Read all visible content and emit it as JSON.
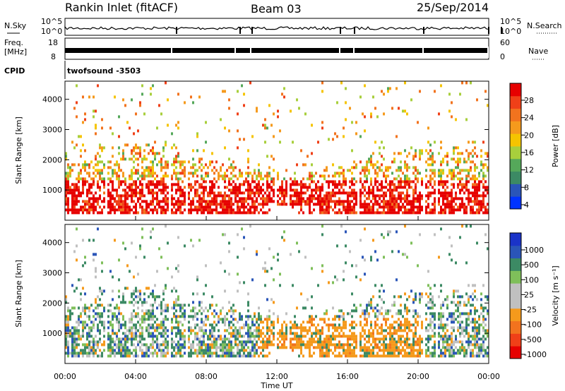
{
  "header": {
    "station": "Rankin Inlet (fitACF)",
    "beam": "Beam 03",
    "date": "25/Sep/2014"
  },
  "panel_noise": {
    "left_label": "N.Sky",
    "right_label": "N.Search",
    "y_ticks_left": [
      "10^5",
      "10^0"
    ],
    "y_ticks_right": [
      "10^5",
      "10^0"
    ]
  },
  "panel_freq": {
    "left_label_line1": "Freq.",
    "left_label_line2": "[MHz]",
    "right_label": "Nave",
    "y_ticks_left": [
      "18",
      "8"
    ],
    "y_ticks_right": [
      "60",
      "0"
    ]
  },
  "panel_cpid": {
    "label": "CPID",
    "program": "twofsound -3503"
  },
  "chart_data": [
    {
      "type": "heatmap",
      "name": "power",
      "ylabel": "Slant Range [km]",
      "yticks": [
        "1000",
        "2000",
        "3000",
        "4000"
      ],
      "colorbar_label": "Power [dB]",
      "colorbar_ticks": [
        "28",
        "24",
        "20",
        "16",
        "12",
        "8",
        "4"
      ],
      "colorbar_colors": [
        "#0033ff",
        "#2a55b8",
        "#3c8a64",
        "#55a85a",
        "#a8cf3c",
        "#f5c400",
        "#f59a1c",
        "#f2731e",
        "#f04018",
        "#e60000"
      ]
    },
    {
      "type": "heatmap",
      "name": "velocity",
      "ylabel": "Slant Range [km]",
      "yticks": [
        "1000",
        "2000",
        "3000",
        "4000"
      ],
      "colorbar_label": "Velocity [m s⁻¹]",
      "colorbar_ticks": [
        "1000",
        "500",
        "100",
        "25",
        "-25",
        "-100",
        "-500",
        "-1000"
      ],
      "colorbar_colors": [
        "#e60000",
        "#f04018",
        "#f2731e",
        "#f59a1c",
        "#c0c0c0",
        "#c0c0c0",
        "#7fbf5a",
        "#3c8a64",
        "#2a55b8",
        "#1a33c8"
      ]
    }
  ],
  "x_axis": {
    "ticks": [
      "00:00",
      "04:00",
      "08:00",
      "12:00",
      "16:00",
      "20:00",
      "00:00"
    ],
    "label": "Time UT"
  }
}
